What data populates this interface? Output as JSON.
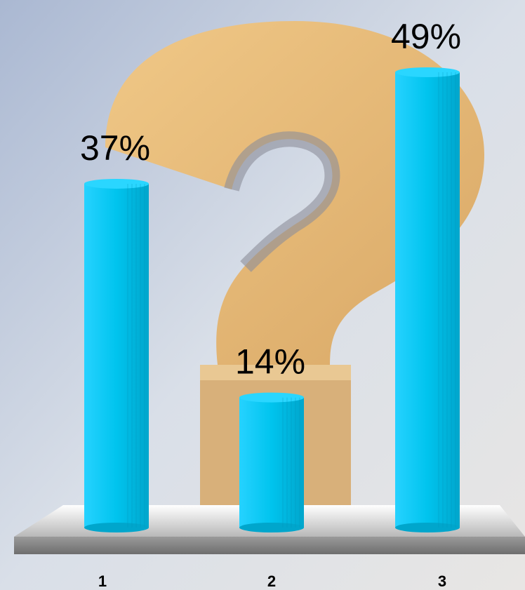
{
  "chart_data": {
    "type": "bar",
    "categories": [
      "1",
      "2",
      "3"
    ],
    "values": [
      37,
      14,
      49
    ],
    "value_labels": [
      "37%",
      "14%",
      "49%"
    ],
    "color": "#00c4ee"
  }
}
